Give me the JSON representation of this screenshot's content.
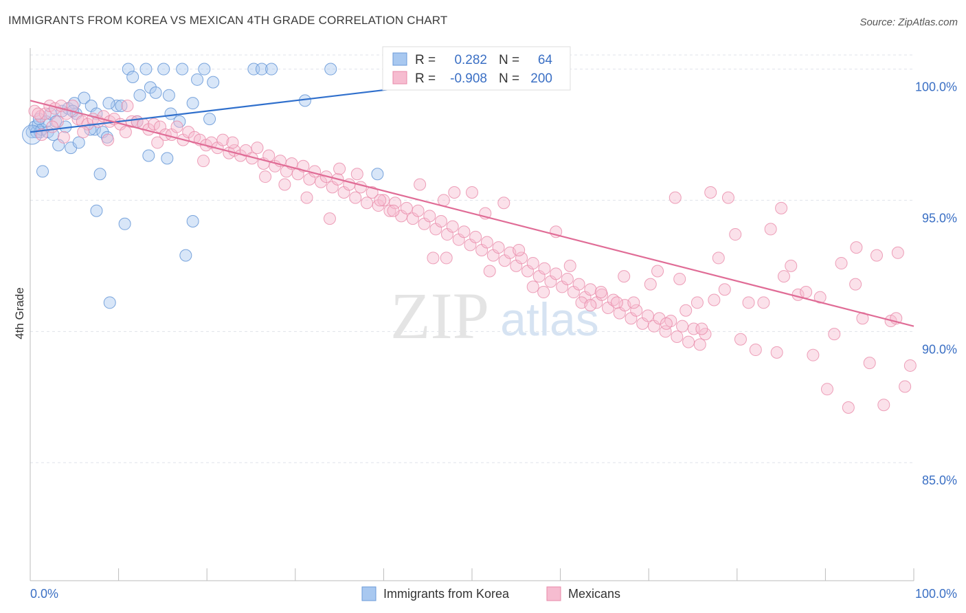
{
  "title": "IMMIGRANTS FROM KOREA VS MEXICAN 4TH GRADE CORRELATION CHART",
  "source": "Source: ZipAtlas.com",
  "watermark": {
    "zip": "ZIP",
    "atlas": "atlas"
  },
  "colors": {
    "korea_fill": "#a8c8f0",
    "korea_stroke": "#6a9ad8",
    "korea_line": "#2f6fcc",
    "mex_fill": "#f6bcd0",
    "mex_stroke": "#e888a8",
    "mex_line": "#e06c96",
    "axis_text": "#3a6fc4",
    "grid": "#dfe3ea"
  },
  "legend_box": {
    "korea": {
      "r_label": "R =",
      "r_value": "0.282",
      "n_label": "N =",
      "n_value": "64"
    },
    "mex": {
      "r_label": "R =",
      "r_value": "-0.908",
      "n_label": "N =",
      "n_value": "200"
    }
  },
  "chart_data": {
    "type": "scatter",
    "title": "IMMIGRANTS FROM KOREA VS MEXICAN 4TH GRADE CORRELATION CHART",
    "xlabel": "",
    "ylabel": "4th Grade",
    "xlim": [
      0,
      100
    ],
    "ylim": [
      80.5,
      100.8
    ],
    "x_tick_labels": [
      "0.0%",
      "100.0%"
    ],
    "y_ticks": [
      85,
      90,
      95,
      100
    ],
    "y_tick_labels": [
      "85.0%",
      "90.0%",
      "95.0%",
      "100.0%"
    ],
    "grid": true,
    "legend_position": "bottom",
    "series": [
      {
        "name": "Immigrants from Korea",
        "R": 0.282,
        "N": 64,
        "trend": {
          "x": [
            0,
            60
          ],
          "y": [
            97.6,
            100.0
          ]
        },
        "points": [
          [
            0.2,
            97.6
          ],
          [
            0.5,
            97.8
          ],
          [
            0.7,
            97.6
          ],
          [
            0.9,
            97.9
          ],
          [
            1.1,
            97.6
          ],
          [
            1.3,
            97.7
          ],
          [
            1.8,
            98.0
          ],
          [
            2.0,
            97.6
          ],
          [
            2.3,
            98.3
          ],
          [
            2.6,
            97.5
          ],
          [
            2.9,
            98.0
          ],
          [
            3.2,
            97.1
          ],
          [
            3.6,
            98.4
          ],
          [
            4.0,
            97.8
          ],
          [
            4.3,
            98.5
          ],
          [
            4.6,
            97.0
          ],
          [
            5.0,
            98.7
          ],
          [
            5.5,
            97.2
          ],
          [
            6.1,
            98.9
          ],
          [
            6.9,
            98.6
          ],
          [
            7.3,
            97.7
          ],
          [
            7.5,
            98.3
          ],
          [
            8.2,
            97.6
          ],
          [
            8.7,
            97.4
          ],
          [
            9.8,
            98.6
          ],
          [
            1.0,
            98.1
          ],
          [
            1.4,
            96.1
          ],
          [
            5.2,
            98.3
          ],
          [
            4.8,
            98.4
          ],
          [
            6.8,
            97.7
          ],
          [
            8.9,
            98.7
          ],
          [
            10.3,
            98.6
          ],
          [
            10.7,
            94.1
          ],
          [
            11.1,
            100.0
          ],
          [
            11.6,
            99.7
          ],
          [
            12.4,
            99.0
          ],
          [
            13.1,
            100.0
          ],
          [
            13.6,
            99.3
          ],
          [
            14.2,
            99.1
          ],
          [
            15.1,
            100.0
          ],
          [
            15.7,
            99.0
          ],
          [
            13.4,
            96.7
          ],
          [
            15.5,
            96.6
          ],
          [
            16.9,
            98.0
          ],
          [
            17.2,
            100.0
          ],
          [
            18.4,
            98.7
          ],
          [
            18.9,
            99.6
          ],
          [
            19.7,
            100.0
          ],
          [
            20.7,
            99.5
          ],
          [
            20.3,
            98.1
          ],
          [
            15.9,
            98.3
          ],
          [
            12.1,
            98.0
          ],
          [
            7.9,
            96.0
          ],
          [
            7.5,
            94.6
          ],
          [
            9.0,
            91.1
          ],
          [
            17.6,
            92.9
          ],
          [
            18.4,
            94.2
          ],
          [
            25.3,
            100.0
          ],
          [
            26.2,
            100.0
          ],
          [
            27.3,
            100.0
          ],
          [
            31.1,
            98.8
          ],
          [
            34.0,
            100.0
          ],
          [
            39.3,
            96.0
          ],
          [
            60.0,
            100.0
          ]
        ]
      },
      {
        "name": "Mexicans",
        "R": -0.908,
        "N": 200,
        "trend": {
          "x": [
            0,
            100
          ],
          "y": [
            98.8,
            90.2
          ]
        },
        "points": [
          [
            0.5,
            98.4
          ],
          [
            1.2,
            98.2
          ],
          [
            1.7,
            98.3
          ],
          [
            2.2,
            98.6
          ],
          [
            2.8,
            98.5
          ],
          [
            3.1,
            98.0
          ],
          [
            3.5,
            98.6
          ],
          [
            4.1,
            98.3
          ],
          [
            4.8,
            98.6
          ],
          [
            5.4,
            98.1
          ],
          [
            5.9,
            98.0
          ],
          [
            6.5,
            97.9
          ],
          [
            7.1,
            98.1
          ],
          [
            7.7,
            98.0
          ],
          [
            8.3,
            98.2
          ],
          [
            9.0,
            98.0
          ],
          [
            9.5,
            98.1
          ],
          [
            10.2,
            97.9
          ],
          [
            10.8,
            97.6
          ],
          [
            11.5,
            98.0
          ],
          [
            12.1,
            98.0
          ],
          [
            12.8,
            97.9
          ],
          [
            13.4,
            97.7
          ],
          [
            14.0,
            97.9
          ],
          [
            14.7,
            97.8
          ],
          [
            15.3,
            97.5
          ],
          [
            16.0,
            97.5
          ],
          [
            16.6,
            97.8
          ],
          [
            17.3,
            97.3
          ],
          [
            17.9,
            97.6
          ],
          [
            18.6,
            97.4
          ],
          [
            19.2,
            97.3
          ],
          [
            19.9,
            97.1
          ],
          [
            20.5,
            97.2
          ],
          [
            21.2,
            97.0
          ],
          [
            21.8,
            97.3
          ],
          [
            22.5,
            96.8
          ],
          [
            23.1,
            96.9
          ],
          [
            23.8,
            96.7
          ],
          [
            24.4,
            96.9
          ],
          [
            25.1,
            96.6
          ],
          [
            25.7,
            97.0
          ],
          [
            26.4,
            96.4
          ],
          [
            27.0,
            96.7
          ],
          [
            27.7,
            96.3
          ],
          [
            28.3,
            96.5
          ],
          [
            29.0,
            96.1
          ],
          [
            29.6,
            96.4
          ],
          [
            30.3,
            96.0
          ],
          [
            30.9,
            96.3
          ],
          [
            31.6,
            95.8
          ],
          [
            32.2,
            96.1
          ],
          [
            32.9,
            95.7
          ],
          [
            33.5,
            95.9
          ],
          [
            34.2,
            95.5
          ],
          [
            34.8,
            95.8
          ],
          [
            35.5,
            95.3
          ],
          [
            36.1,
            95.6
          ],
          [
            36.8,
            95.1
          ],
          [
            37.4,
            95.5
          ],
          [
            38.1,
            94.9
          ],
          [
            38.7,
            95.3
          ],
          [
            39.4,
            94.8
          ],
          [
            40.0,
            95.0
          ],
          [
            40.7,
            94.6
          ],
          [
            41.3,
            94.9
          ],
          [
            42.0,
            94.4
          ],
          [
            42.6,
            94.7
          ],
          [
            43.3,
            94.3
          ],
          [
            43.9,
            94.6
          ],
          [
            44.6,
            94.1
          ],
          [
            45.2,
            94.4
          ],
          [
            45.9,
            93.9
          ],
          [
            46.5,
            94.2
          ],
          [
            47.2,
            93.7
          ],
          [
            47.8,
            94.0
          ],
          [
            48.5,
            93.5
          ],
          [
            49.1,
            93.8
          ],
          [
            49.8,
            93.3
          ],
          [
            50.4,
            93.6
          ],
          [
            51.1,
            93.1
          ],
          [
            51.7,
            93.4
          ],
          [
            52.4,
            92.9
          ],
          [
            53.0,
            93.2
          ],
          [
            53.7,
            92.7
          ],
          [
            54.3,
            93.0
          ],
          [
            55.0,
            92.5
          ],
          [
            55.6,
            92.8
          ],
          [
            56.3,
            92.3
          ],
          [
            56.9,
            92.6
          ],
          [
            57.6,
            92.1
          ],
          [
            58.2,
            92.4
          ],
          [
            58.9,
            91.9
          ],
          [
            59.5,
            92.2
          ],
          [
            60.2,
            91.7
          ],
          [
            60.8,
            92.0
          ],
          [
            61.5,
            91.5
          ],
          [
            62.1,
            91.8
          ],
          [
            62.8,
            91.3
          ],
          [
            63.4,
            91.6
          ],
          [
            64.1,
            91.1
          ],
          [
            64.7,
            91.4
          ],
          [
            65.4,
            90.9
          ],
          [
            66.0,
            91.2
          ],
          [
            66.7,
            90.7
          ],
          [
            67.3,
            91.0
          ],
          [
            68.0,
            90.5
          ],
          [
            68.6,
            90.8
          ],
          [
            69.3,
            90.3
          ],
          [
            69.9,
            90.6
          ],
          [
            70.6,
            90.2
          ],
          [
            71.2,
            90.5
          ],
          [
            71.9,
            90.0
          ],
          [
            72.5,
            90.4
          ],
          [
            73.2,
            89.8
          ],
          [
            73.8,
            90.2
          ],
          [
            74.5,
            89.6
          ],
          [
            75.1,
            90.1
          ],
          [
            75.8,
            89.5
          ],
          [
            76.4,
            89.9
          ],
          [
            1.3,
            97.5
          ],
          [
            0.9,
            98.3
          ],
          [
            2.5,
            97.8
          ],
          [
            3.8,
            97.4
          ],
          [
            6.0,
            97.6
          ],
          [
            8.8,
            97.3
          ],
          [
            11.0,
            98.6
          ],
          [
            14.4,
            97.2
          ],
          [
            19.6,
            96.5
          ],
          [
            22.9,
            97.2
          ],
          [
            26.6,
            95.9
          ],
          [
            28.8,
            95.6
          ],
          [
            31.3,
            95.1
          ],
          [
            33.9,
            94.3
          ],
          [
            35.0,
            96.2
          ],
          [
            37.0,
            96.0
          ],
          [
            39.6,
            95.0
          ],
          [
            41.1,
            94.6
          ],
          [
            44.1,
            95.6
          ],
          [
            45.6,
            92.8
          ],
          [
            46.8,
            95.0
          ],
          [
            47.1,
            92.8
          ],
          [
            48.0,
            95.3
          ],
          [
            50.0,
            95.3
          ],
          [
            51.5,
            94.5
          ],
          [
            52.0,
            92.3
          ],
          [
            53.6,
            94.9
          ],
          [
            55.3,
            93.1
          ],
          [
            56.9,
            91.7
          ],
          [
            58.1,
            91.5
          ],
          [
            59.5,
            93.8
          ],
          [
            61.1,
            92.5
          ],
          [
            62.4,
            91.1
          ],
          [
            63.4,
            91.0
          ],
          [
            64.6,
            91.5
          ],
          [
            66.4,
            91.1
          ],
          [
            67.2,
            92.1
          ],
          [
            68.3,
            91.1
          ],
          [
            70.2,
            91.8
          ],
          [
            71.0,
            92.3
          ],
          [
            72.0,
            90.3
          ],
          [
            73.5,
            92.0
          ],
          [
            74.2,
            90.8
          ],
          [
            75.5,
            91.1
          ],
          [
            76.0,
            90.1
          ],
          [
            77.4,
            91.2
          ],
          [
            77.9,
            92.8
          ],
          [
            78.6,
            91.6
          ],
          [
            79.8,
            93.7
          ],
          [
            80.4,
            89.7
          ],
          [
            81.3,
            91.1
          ],
          [
            82.1,
            89.3
          ],
          [
            83.0,
            91.1
          ],
          [
            83.8,
            93.9
          ],
          [
            84.5,
            89.2
          ],
          [
            85.3,
            92.1
          ],
          [
            86.1,
            92.5
          ],
          [
            86.9,
            91.4
          ],
          [
            87.8,
            91.5
          ],
          [
            88.6,
            89.1
          ],
          [
            89.4,
            91.3
          ],
          [
            90.2,
            87.8
          ],
          [
            91.0,
            89.9
          ],
          [
            91.8,
            92.6
          ],
          [
            92.6,
            87.1
          ],
          [
            93.4,
            91.8
          ],
          [
            94.2,
            90.5
          ],
          [
            95.0,
            88.8
          ],
          [
            95.8,
            92.9
          ],
          [
            96.6,
            87.2
          ],
          [
            97.4,
            90.4
          ],
          [
            98.2,
            93.0
          ],
          [
            99.0,
            87.9
          ],
          [
            99.6,
            88.7
          ],
          [
            73.0,
            95.1
          ],
          [
            77.0,
            95.3
          ],
          [
            85.0,
            94.7
          ],
          [
            93.5,
            93.2
          ],
          [
            98.0,
            90.5
          ],
          [
            79.0,
            95.1
          ]
        ]
      }
    ]
  },
  "bottom_legend": {
    "korea": "Immigrants from Korea",
    "mex": "Mexicans"
  }
}
